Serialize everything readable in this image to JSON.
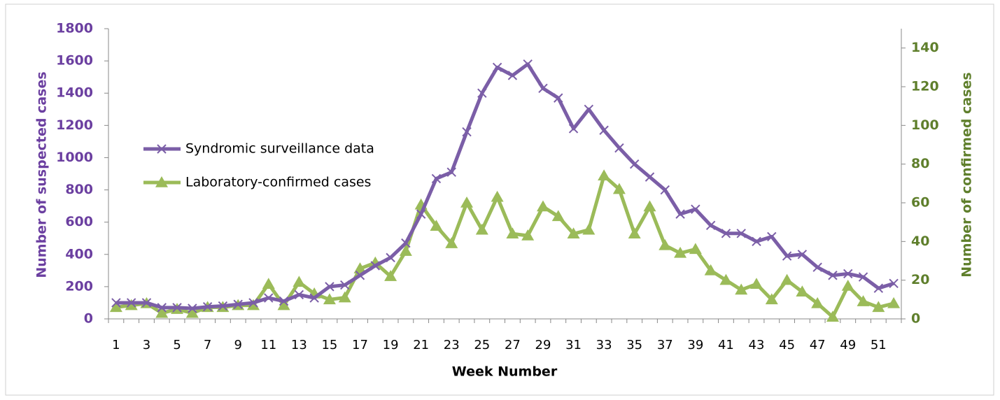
{
  "chart_data": {
    "type": "line",
    "xlabel": "Week Number",
    "ylabel": "Number of suspected cases",
    "y2label": "Number of confirmed cases",
    "categories": [
      "1",
      null,
      "3",
      null,
      "5",
      null,
      "7",
      null,
      "9",
      null,
      "11",
      null,
      "13",
      null,
      "15",
      null,
      "17",
      null,
      "19",
      null,
      "21",
      null,
      "23",
      null,
      "25",
      null,
      "27",
      null,
      "29",
      null,
      "31",
      null,
      "33",
      null,
      "35",
      null,
      "37",
      null,
      "39",
      null,
      "41",
      null,
      "43",
      null,
      "45",
      null,
      "47",
      null,
      "49",
      null,
      "51",
      null
    ],
    "ylim": [
      0,
      1800
    ],
    "yticks": [
      0,
      200,
      400,
      600,
      800,
      1000,
      1200,
      1400,
      1600,
      1800
    ],
    "y2lim": [
      0,
      150
    ],
    "y2ticks": [
      0,
      20,
      40,
      60,
      80,
      100,
      120,
      140
    ],
    "series": [
      {
        "name": "Syndromic surveillance data",
        "color": "#7b5ea7",
        "marker": "x",
        "values": [
          100,
          100,
          100,
          70,
          70,
          65,
          75,
          80,
          90,
          100,
          130,
          110,
          150,
          130,
          200,
          210,
          270,
          330,
          380,
          470,
          650,
          870,
          910,
          1160,
          1400,
          1560,
          1510,
          1580,
          1430,
          1370,
          1180,
          1300,
          1170,
          1060,
          960,
          880,
          800,
          650,
          680,
          580,
          530,
          530,
          480,
          510,
          390,
          400,
          320,
          270,
          280,
          260,
          190,
          220
        ]
      },
      {
        "name": "Laboratory-confirmed cases",
        "color": "#9bbb59",
        "marker": "triangle",
        "axis": "y2",
        "values": [
          6,
          7,
          8,
          3,
          5,
          3,
          6,
          6,
          7,
          7,
          18,
          7,
          19,
          13,
          10,
          11,
          26,
          29,
          22,
          35,
          59,
          48,
          39,
          60,
          46,
          63,
          44,
          43,
          58,
          53,
          44,
          46,
          74,
          67,
          44,
          58,
          38,
          34,
          36,
          25,
          20,
          15,
          18,
          10,
          20,
          14,
          8,
          1,
          17,
          9,
          6,
          8
        ]
      }
    ]
  }
}
